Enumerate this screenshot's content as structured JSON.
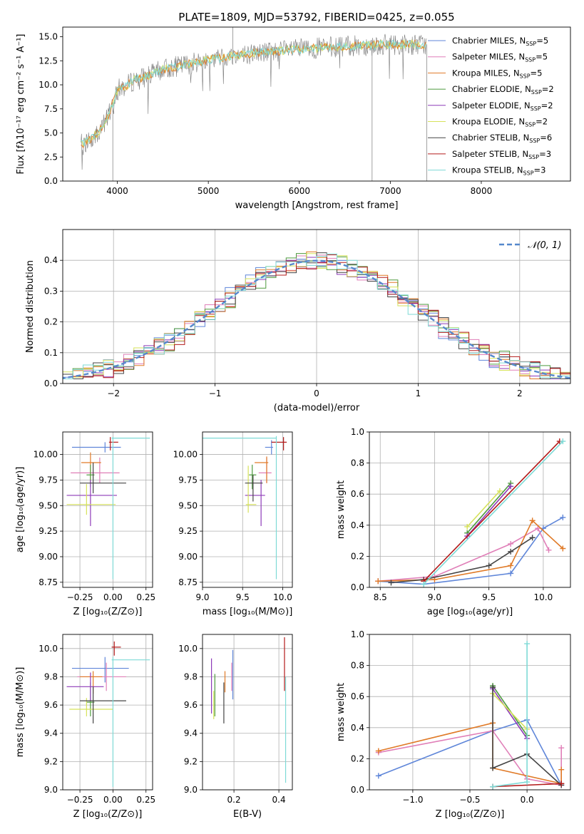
{
  "colors": {
    "chab_miles": "#5f86d9",
    "salp_miles": "#e07fb8",
    "krou_miles": "#e07a27",
    "chab_elodie": "#4e9a3f",
    "salp_elodie": "#8e3ab8",
    "krou_elodie": "#d6e25a",
    "chab_stelib": "#444444",
    "salp_stelib": "#b31b1b",
    "krou_stelib": "#7edad6",
    "spectrum": "#7a7a7a",
    "normal": "#5588cc",
    "grid": "#b0b0b0"
  },
  "chart_data": [
    {
      "id": "spectrum",
      "type": "line",
      "title": "PLATE=1809, MJD=53792, FIBERID=0425, z=0.055",
      "xlabel": "wavelength [Angstrom, rest frame]",
      "ylabel": "Flux [fλ10⁻¹⁷ erg cm⁻² s⁻¹ A⁻¹]",
      "xlim": [
        3400,
        8980
      ],
      "ylim": [
        0,
        16
      ],
      "xticks": [
        4000,
        5000,
        6000,
        7000,
        8000
      ],
      "yticks": [
        0.0,
        2.5,
        5.0,
        7.5,
        10.0,
        12.5,
        15.0
      ],
      "grid": false,
      "legend_position": "right",
      "continuum": {
        "x": [
          3600,
          3700,
          3800,
          3900,
          4000,
          4100,
          4200,
          4300,
          4500,
          4700,
          5000,
          5500,
          6000,
          6500,
          7000,
          7400
        ],
        "y": [
          3.8,
          4.3,
          5.2,
          6.8,
          9.5,
          9.9,
          10.6,
          10.8,
          11.6,
          12.0,
          12.6,
          13.3,
          13.7,
          14.0,
          14.2,
          14.2
        ]
      },
      "legend": [
        "Chabrier MILES, N_SSP=5",
        "Salpeter MILES, N_SSP=5",
        "Kroupa MILES, N_SSP=5",
        "Chabrier ELODIE, N_SSP=2",
        "Salpeter ELODIE, N_SSP=2",
        "Kroupa ELODIE, N_SSP=2",
        "Chabrier STELIB, N_SSP=6",
        "Salpeter STELIB, N_SSP=3",
        "Kroupa STELIB, N_SSP=3"
      ]
    },
    {
      "id": "residuals",
      "type": "histogram",
      "xlabel": "(data-model)/error",
      "ylabel": "Normed distribution",
      "xlim": [
        -2.5,
        2.5
      ],
      "ylim": [
        0,
        0.5
      ],
      "xticks": [
        -2,
        -1,
        0,
        1,
        2
      ],
      "yticks": [
        0.0,
        0.1,
        0.2,
        0.3,
        0.4
      ],
      "grid": true,
      "legend": [
        "𝒩(0, 1)"
      ],
      "legend_position": "top-right",
      "bin_width": 0.1,
      "curve": "normal(0,1)"
    },
    {
      "id": "age_vs_Z",
      "type": "errorbar",
      "xlabel": "Z [log₁₀(Z/Z⊙)]",
      "ylabel": "age  [log₁₀(age/yr)]",
      "xlim": [
        -0.38,
        0.3
      ],
      "ylim": [
        8.7,
        10.22
      ],
      "xticks": [
        -0.25,
        0.0,
        0.25
      ],
      "yticks": [
        8.75,
        9.0,
        9.25,
        9.5,
        9.75,
        10.0
      ],
      "grid": true,
      "points": [
        {
          "k": "chab_miles",
          "x": -0.06,
          "xerr": [
            0.25,
            0.12
          ],
          "y": 10.07,
          "yerr": [
            0.05,
            0.05
          ]
        },
        {
          "k": "salp_miles",
          "x": -0.1,
          "xerr": [
            0.22,
            0.15
          ],
          "y": 9.82,
          "yerr": [
            0.1,
            0.15
          ]
        },
        {
          "k": "krou_miles",
          "x": -0.17,
          "xerr": [
            0.07,
            0.08
          ],
          "y": 9.92,
          "yerr": [
            0.2,
            0.1
          ]
        },
        {
          "k": "chab_elodie",
          "x": -0.17,
          "xerr": [
            0.03,
            0.03
          ],
          "y": 9.8,
          "yerr": [
            0.12,
            0.1
          ]
        },
        {
          "k": "salp_elodie",
          "x": -0.17,
          "xerr": [
            0.18,
            0.2
          ],
          "y": 9.6,
          "yerr": [
            0.3,
            0.15
          ]
        },
        {
          "k": "krou_elodie",
          "x": -0.2,
          "xerr": [
            0.15,
            0.22
          ],
          "y": 9.51,
          "yerr": [
            0.1,
            0.2
          ]
        },
        {
          "k": "chab_stelib",
          "x": -0.15,
          "xerr": [
            0.1,
            0.25
          ],
          "y": 9.72,
          "yerr": [
            0.1,
            0.2
          ]
        },
        {
          "k": "salp_stelib",
          "x": -0.02,
          "xerr": [
            0.01,
            0.06
          ],
          "y": 10.12,
          "yerr": [
            0.08,
            0.05
          ]
        },
        {
          "k": "krou_stelib",
          "x": 0.0,
          "xerr": [
            0.01,
            0.28
          ],
          "y": 10.16,
          "yerr": [
            1.38,
            0.01
          ]
        }
      ]
    },
    {
      "id": "age_vs_mass",
      "type": "errorbar",
      "xlabel": "mass [log₁₀(M/M⊙)]",
      "ylabel": "",
      "xlim": [
        9.0,
        10.12
      ],
      "ylim": [
        8.7,
        10.22
      ],
      "xticks": [
        9.0,
        9.5,
        10.0
      ],
      "yticks": [
        8.75,
        9.0,
        9.25,
        9.5,
        9.75,
        10.0
      ],
      "grid": true,
      "points": [
        {
          "k": "chab_miles",
          "x": 9.86,
          "xerr": [
            0.08,
            0.02
          ],
          "y": 10.07,
          "yerr": [
            0.07,
            0.07
          ]
        },
        {
          "k": "salp_miles",
          "x": 9.8,
          "xerr": [
            0.1,
            0.06
          ],
          "y": 9.82,
          "yerr": [
            0.1,
            0.15
          ]
        },
        {
          "k": "krou_miles",
          "x": 9.8,
          "xerr": [
            0.15,
            0.02
          ],
          "y": 9.92,
          "yerr": [
            0.2,
            0.06
          ]
        },
        {
          "k": "chab_elodie",
          "x": 9.62,
          "xerr": [
            0.04,
            0.05
          ],
          "y": 9.8,
          "yerr": [
            0.14,
            0.1
          ]
        },
        {
          "k": "salp_elodie",
          "x": 9.73,
          "xerr": [
            0.2,
            0.05
          ],
          "y": 9.6,
          "yerr": [
            0.3,
            0.15
          ]
        },
        {
          "k": "krou_elodie",
          "x": 9.57,
          "xerr": [
            0.03,
            0.1
          ],
          "y": 9.51,
          "yerr": [
            0.08,
            0.38
          ]
        },
        {
          "k": "chab_stelib",
          "x": 9.63,
          "xerr": [
            0.1,
            0.12
          ],
          "y": 9.72,
          "yerr": [
            0.18,
            0.08
          ]
        },
        {
          "k": "salp_stelib",
          "x": 10.01,
          "xerr": [
            0.15,
            0.04
          ],
          "y": 10.12,
          "yerr": [
            0.08,
            0.05
          ]
        },
        {
          "k": "krou_stelib",
          "x": 9.92,
          "xerr": [
            0.92,
            0.0
          ],
          "y": 10.16,
          "yerr": [
            1.38,
            0.02
          ]
        }
      ]
    },
    {
      "id": "weight_vs_age",
      "type": "line",
      "xlabel": "age  [log₁₀(age/yr)]",
      "ylabel": "mass weight",
      "xlim": [
        8.4,
        10.25
      ],
      "ylim": [
        0,
        1.0
      ],
      "xticks": [
        8.5,
        9.0,
        9.5,
        10.0
      ],
      "yticks": [
        0.0,
        0.2,
        0.4,
        0.6,
        0.8,
        1.0
      ],
      "grid": true,
      "series": [
        {
          "k": "chab_miles",
          "x": [
            8.48,
            8.9,
            9.7,
            10.0,
            10.18
          ],
          "y": [
            0.04,
            0.02,
            0.09,
            0.38,
            0.45
          ]
        },
        {
          "k": "salp_miles",
          "x": [
            8.48,
            9.0,
            9.7,
            9.95,
            10.05
          ],
          "y": [
            0.04,
            0.07,
            0.28,
            0.38,
            0.24
          ]
        },
        {
          "k": "krou_miles",
          "x": [
            8.48,
            9.0,
            9.7,
            9.9,
            10.18
          ],
          "y": [
            0.04,
            0.05,
            0.14,
            0.43,
            0.25
          ]
        },
        {
          "k": "chab_elodie",
          "x": [
            9.3,
            9.7
          ],
          "y": [
            0.35,
            0.67
          ]
        },
        {
          "k": "salp_elodie",
          "x": [
            9.3,
            9.7
          ],
          "y": [
            0.33,
            0.65
          ]
        },
        {
          "k": "krou_elodie",
          "x": [
            9.3,
            9.6
          ],
          "y": [
            0.39,
            0.62
          ]
        },
        {
          "k": "chab_stelib",
          "x": [
            8.6,
            8.9,
            9.5,
            9.7,
            9.9
          ],
          "y": [
            0.03,
            0.05,
            0.14,
            0.23,
            0.32
          ]
        },
        {
          "k": "salp_stelib",
          "x": [
            8.9,
            10.15
          ],
          "y": [
            0.04,
            0.94
          ]
        },
        {
          "k": "krou_stelib",
          "x": [
            8.9,
            10.18
          ],
          "y": [
            0.02,
            0.94
          ]
        }
      ]
    },
    {
      "id": "mass_vs_Z",
      "type": "errorbar",
      "xlabel": "Z [log₁₀(Z/Z⊙)]",
      "ylabel": "mass [log₁₀(M/M⊙)]",
      "xlim": [
        -0.38,
        0.3
      ],
      "ylim": [
        9.0,
        10.1
      ],
      "xticks": [
        -0.25,
        0.0,
        0.25
      ],
      "yticks": [
        9.0,
        9.2,
        9.4,
        9.6,
        9.8,
        10.0
      ],
      "grid": true,
      "points": [
        {
          "k": "chab_miles",
          "x": -0.06,
          "xerr": [
            0.25,
            0.18
          ],
          "y": 9.86,
          "yerr": [
            0.1,
            0.08
          ]
        },
        {
          "k": "salp_miles",
          "x": -0.05,
          "xerr": [
            0.22,
            0.15
          ],
          "y": 9.8,
          "yerr": [
            0.1,
            0.1
          ]
        },
        {
          "k": "krou_miles",
          "x": -0.15,
          "xerr": [
            0.1,
            0.07
          ],
          "y": 9.8,
          "yerr": [
            0.12,
            0.04
          ]
        },
        {
          "k": "chab_elodie",
          "x": -0.17,
          "xerr": [
            0.03,
            0.03
          ],
          "y": 9.62,
          "yerr": [
            0.1,
            0.14
          ]
        },
        {
          "k": "salp_elodie",
          "x": -0.17,
          "xerr": [
            0.18,
            0.1
          ],
          "y": 9.73,
          "yerr": [
            0.1,
            0.1
          ]
        },
        {
          "k": "krou_elodie",
          "x": -0.2,
          "xerr": [
            0.13,
            0.2
          ],
          "y": 9.57,
          "yerr": [
            0.05,
            0.08
          ]
        },
        {
          "k": "chab_stelib",
          "x": -0.15,
          "xerr": [
            0.1,
            0.25
          ],
          "y": 9.63,
          "yerr": [
            0.16,
            0.1
          ]
        },
        {
          "k": "salp_stelib",
          "x": 0.01,
          "xerr": [
            0.02,
            0.05
          ],
          "y": 10.01,
          "yerr": [
            0.06,
            0.04
          ]
        },
        {
          "k": "krou_stelib",
          "x": 0.0,
          "xerr": [
            0.01,
            0.28
          ],
          "y": 9.92,
          "yerr": [
            0.9,
            0.02
          ]
        }
      ]
    },
    {
      "id": "mass_vs_ebv",
      "type": "errorbar",
      "xlabel": "E(B-V)",
      "ylabel": "",
      "xlim": [
        0.06,
        0.46
      ],
      "ylim": [
        9.0,
        10.1
      ],
      "xticks": [
        0.2,
        0.4
      ],
      "yticks": [
        9.0,
        9.2,
        9.4,
        9.6,
        9.8,
        10.0
      ],
      "grid": true,
      "points": [
        {
          "k": "chab_miles",
          "x": 0.195,
          "xerr": [
            0,
            0
          ],
          "y": 9.86,
          "yerr": [
            0.22,
            0.13
          ]
        },
        {
          "k": "salp_miles",
          "x": 0.19,
          "xerr": [
            0,
            0
          ],
          "y": 9.8,
          "yerr": [
            0.1,
            0.1
          ]
        },
        {
          "k": "krou_miles",
          "x": 0.16,
          "xerr": [
            0,
            0
          ],
          "y": 9.77,
          "yerr": [
            0.08,
            0.07
          ]
        },
        {
          "k": "chab_elodie",
          "x": 0.115,
          "xerr": [
            0,
            0
          ],
          "y": 9.62,
          "yerr": [
            0.1,
            0.2
          ]
        },
        {
          "k": "salp_elodie",
          "x": 0.1,
          "xerr": [
            0,
            0
          ],
          "y": 9.73,
          "yerr": [
            0.19,
            0.2
          ]
        },
        {
          "k": "krou_elodie",
          "x": 0.11,
          "xerr": [
            0,
            0
          ],
          "y": 9.6,
          "yerr": [
            0.1,
            0.1
          ]
        },
        {
          "k": "chab_stelib",
          "x": 0.155,
          "xerr": [
            0,
            0
          ],
          "y": 9.63,
          "yerr": [
            0.16,
            0.13
          ]
        },
        {
          "k": "salp_stelib",
          "x": 0.425,
          "xerr": [
            0,
            0
          ],
          "y": 9.9,
          "yerr": [
            0.2,
            0.18
          ]
        },
        {
          "k": "krou_stelib",
          "x": 0.43,
          "xerr": [
            0,
            0
          ],
          "y": 9.45,
          "yerr": [
            0.4,
            0.35
          ]
        }
      ]
    },
    {
      "id": "weight_vs_Z",
      "type": "line",
      "xlabel": "Z [log₁₀(Z/Z⊙)]",
      "ylabel": "mass weight",
      "xlim": [
        -1.38,
        0.38
      ],
      "ylim": [
        0,
        1.0
      ],
      "xticks": [
        -1.0,
        -0.5,
        0.0
      ],
      "yticks": [
        0.0,
        0.2,
        0.4,
        0.6,
        0.8,
        1.0
      ],
      "grid": true,
      "series": [
        {
          "k": "chab_miles",
          "x": [
            -1.3,
            -0.3,
            0.0,
            0.3
          ],
          "y": [
            0.09,
            0.38,
            0.45,
            0.03
          ]
        },
        {
          "k": "salp_miles",
          "x": [
            -1.3,
            -0.3,
            0.0,
            0.3,
            0.3
          ],
          "y": [
            0.24,
            0.38,
            0.07,
            0.03,
            0.27
          ]
        },
        {
          "k": "krou_miles",
          "x": [
            -1.3,
            -0.3,
            -0.3,
            0.3,
            0.3
          ],
          "y": [
            0.25,
            0.43,
            0.14,
            0.04,
            0.13
          ]
        },
        {
          "k": "chab_elodie",
          "x": [
            -0.3,
            0.0
          ],
          "y": [
            0.67,
            0.35
          ]
        },
        {
          "k": "salp_elodie",
          "x": [
            -0.3,
            0.0
          ],
          "y": [
            0.65,
            0.33
          ]
        },
        {
          "k": "krou_elodie",
          "x": [
            -0.3,
            0.0
          ],
          "y": [
            0.62,
            0.39
          ]
        },
        {
          "k": "chab_stelib",
          "x": [
            -0.3,
            -0.3,
            0.0,
            0.3
          ],
          "y": [
            0.66,
            0.14,
            0.23,
            0.03
          ]
        },
        {
          "k": "salp_stelib",
          "x": [
            -0.3,
            0.3,
            0.3
          ],
          "y": [
            0.02,
            0.04,
            0.04
          ]
        },
        {
          "k": "krou_stelib",
          "x": [
            -0.3,
            0.0,
            0.0
          ],
          "y": [
            0.02,
            0.05,
            0.94
          ]
        }
      ]
    }
  ]
}
